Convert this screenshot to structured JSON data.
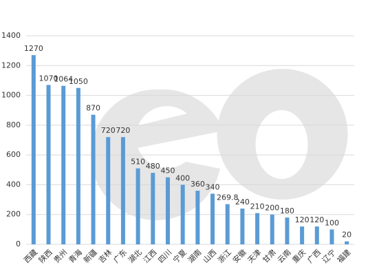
{
  "chart_data": {
    "type": "bar",
    "categories": [
      "西藏",
      "陕西",
      "贵州",
      "青海",
      "新疆",
      "吉林",
      "广东",
      "湖北",
      "江西",
      "四川",
      "宁夏",
      "湖南",
      "山西",
      "浙江",
      "安徽",
      "天津",
      "甘肃",
      "云南",
      "重庆",
      "广西",
      "辽宁",
      "福建"
    ],
    "values": [
      1270,
      1070,
      1064,
      1050,
      870,
      720,
      720,
      510,
      480,
      450,
      400,
      360,
      340,
      269.8,
      240,
      210,
      200,
      180,
      120,
      120,
      100,
      20
    ],
    "color": "#5b9bd5",
    "ylim": [
      0,
      1400
    ],
    "yticks": [
      0,
      200,
      400,
      600,
      800,
      1000,
      1200,
      1400
    ],
    "grid": true
  }
}
